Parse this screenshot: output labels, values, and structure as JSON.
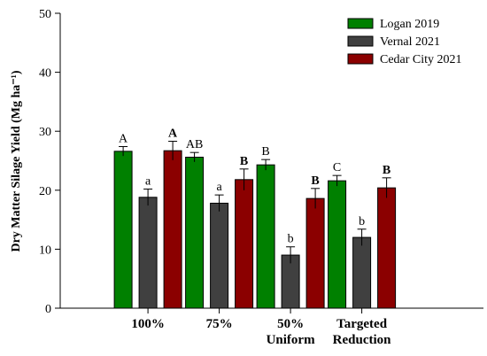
{
  "chart_data": {
    "type": "bar",
    "ylabel": "Dry Matter Silage Yield (Mg ha⁻¹)",
    "ylim": [
      0,
      50
    ],
    "yticks": [
      0,
      10,
      20,
      30,
      40,
      50
    ],
    "categories": [
      [
        "100%"
      ],
      [
        "75%"
      ],
      [
        "50%",
        "Uniform"
      ],
      [
        "Targeted",
        "Reduction"
      ]
    ],
    "legend_position": "top-right",
    "grid": false,
    "series": [
      {
        "name": "Logan 2019",
        "color": "#008000",
        "values": [
          26.6,
          25.6,
          24.3,
          21.6
        ],
        "errors": [
          0.8,
          0.8,
          0.9,
          0.9
        ],
        "letters": [
          "A",
          "AB",
          "B",
          "C"
        ],
        "letters_bold": false
      },
      {
        "name": "Vernal 2021",
        "color": "#404040",
        "values": [
          18.8,
          17.8,
          9.0,
          12.0
        ],
        "errors": [
          1.4,
          1.4,
          1.4,
          1.4
        ],
        "letters": [
          "a",
          "a",
          "b",
          "b"
        ],
        "letters_bold": false
      },
      {
        "name": "Cedar City 2021",
        "color": "#8B0000",
        "values": [
          26.7,
          21.8,
          18.6,
          20.4
        ],
        "errors": [
          1.6,
          1.8,
          1.7,
          1.7
        ],
        "letters": [
          "A",
          "B",
          "B",
          "B"
        ],
        "letters_bold": true
      }
    ]
  }
}
